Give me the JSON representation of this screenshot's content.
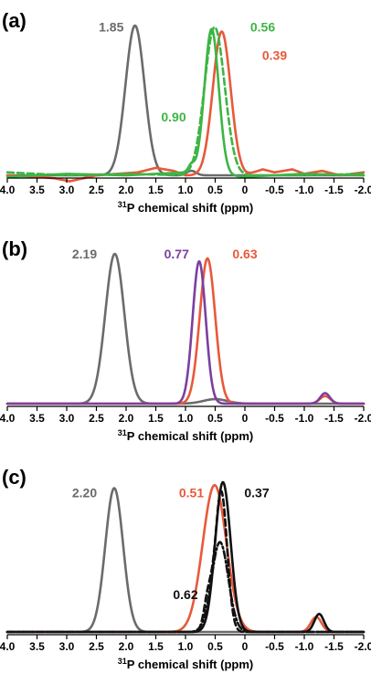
{
  "chart_data": [
    {
      "type": "line",
      "panel_label": "(a)",
      "xlabel_sup": "31",
      "xlabel": "P chemical shift (ppm)",
      "xlim": [
        4.0,
        -2.0
      ],
      "x_reversed": true,
      "x_ticks": [
        4.0,
        3.5,
        3.0,
        2.5,
        2.0,
        1.5,
        1.0,
        0.5,
        0,
        -0.5,
        -1.0,
        -1.5,
        -2.0
      ],
      "x_tick_labels": [
        "4.0",
        "3.5",
        "3.0",
        "2.5",
        "2.0",
        "1.5",
        "1.0",
        "0.5",
        "0",
        "-0.5",
        "-1.0",
        "-1.5",
        "-2.0"
      ],
      "ylim": [
        0,
        1.0
      ],
      "grid": false,
      "series": [
        {
          "color": "#6b6b6b",
          "dash": "solid",
          "peaks": [
            [
              1.85,
              1.0,
              0.16
            ],
            [
              0.9,
              0.03,
              0.08
            ]
          ],
          "baseline_points": []
        },
        {
          "color": "#e8593a",
          "dash": "solid",
          "peaks": [
            [
              0.39,
              0.96,
              0.15
            ]
          ],
          "baseline_points": [
            [
              4.0,
              0.0
            ],
            [
              3.5,
              -0.01
            ],
            [
              3.2,
              -0.02
            ],
            [
              2.95,
              -0.04
            ],
            [
              2.5,
              0.0
            ],
            [
              1.8,
              0.02
            ],
            [
              1.5,
              0.05
            ],
            [
              1.2,
              0.03
            ],
            [
              1.0,
              0.0
            ],
            [
              0.0,
              0.0
            ],
            [
              -0.3,
              0.04
            ],
            [
              -0.5,
              0.02
            ],
            [
              -0.8,
              0.04
            ],
            [
              -1.0,
              0.01
            ],
            [
              -1.3,
              0.03
            ],
            [
              -1.6,
              0.0
            ],
            [
              -2.0,
              0.02
            ]
          ]
        },
        {
          "color": "#3db545",
          "dash": "solid",
          "peaks": [
            [
              0.56,
              0.97,
              0.12
            ],
            [
              0.9,
              0.05,
              0.05
            ]
          ],
          "baseline_points": [
            [
              4.0,
              -0.01
            ],
            [
              3.0,
              0.01
            ],
            [
              2.0,
              0.0
            ],
            [
              1.0,
              0.02
            ],
            [
              0.0,
              -0.01
            ],
            [
              -1.0,
              0.01
            ],
            [
              -2.0,
              0.0
            ]
          ]
        },
        {
          "color": "#3db545",
          "dash": "dashed",
          "peaks": [
            [
              0.51,
              0.99,
              0.17
            ]
          ],
          "baseline_points": [
            [
              4.0,
              0.02
            ],
            [
              3.0,
              0.0
            ],
            [
              2.0,
              0.01
            ],
            [
              1.0,
              0.0
            ],
            [
              0.0,
              0.0
            ],
            [
              -1.0,
              0.0
            ],
            [
              -2.0,
              0.01
            ]
          ]
        }
      ],
      "annotations": [
        {
          "text": "1.85",
          "color": "#6b6b6b",
          "x": 2.25,
          "y": 0.96
        },
        {
          "text": "0.56",
          "color": "#3db545",
          "x": -0.3,
          "y": 0.96
        },
        {
          "text": "0.39",
          "color": "#e8593a",
          "x": -0.5,
          "y": 0.77
        },
        {
          "text": "0.90",
          "color": "#3db545",
          "x": 1.2,
          "y": 0.36
        }
      ]
    },
    {
      "type": "line",
      "panel_label": "(b)",
      "xlabel_sup": "31",
      "xlabel": "P chemical shift (ppm)",
      "xlim": [
        4.0,
        -2.0
      ],
      "x_reversed": true,
      "x_ticks": [
        4.0,
        3.5,
        3.0,
        2.5,
        2.0,
        1.5,
        1.0,
        0.5,
        0,
        -0.5,
        -1.0,
        -1.5,
        -2.0
      ],
      "x_tick_labels": [
        "4.0",
        "3.5",
        "3.0",
        "2.5",
        "2.0",
        "1.5",
        "1.0",
        "0.5",
        "0",
        "-0.5",
        "-1.0",
        "-1.5",
        "-2.0"
      ],
      "ylim": [
        0,
        1.0
      ],
      "grid": false,
      "series": [
        {
          "color": "#6b6b6b",
          "dash": "solid",
          "peaks": [
            [
              2.19,
              1.0,
              0.16
            ],
            [
              0.5,
              0.03,
              0.2
            ]
          ],
          "baseline_points": []
        },
        {
          "color": "#e8593a",
          "dash": "solid",
          "peaks": [
            [
              0.63,
              0.97,
              0.13
            ],
            [
              -1.35,
              0.05,
              0.09
            ]
          ],
          "baseline_points": []
        },
        {
          "color": "#7b3fa0",
          "dash": "solid",
          "peaks": [
            [
              0.77,
              0.95,
              0.11
            ],
            [
              -1.35,
              0.07,
              0.08
            ]
          ],
          "baseline_points": []
        }
      ],
      "annotations": [
        {
          "text": "2.19",
          "color": "#6b6b6b",
          "x": 2.7,
          "y": 0.97
        },
        {
          "text": "0.77",
          "color": "#7b3fa0",
          "x": 1.15,
          "y": 0.97
        },
        {
          "text": "0.63",
          "color": "#e8593a",
          "x": 0.0,
          "y": 0.97
        }
      ]
    },
    {
      "type": "line",
      "panel_label": "(c)",
      "xlabel_sup": "31",
      "xlabel": "P chemical shift (ppm)",
      "xlim": [
        4.0,
        -2.0
      ],
      "x_reversed": true,
      "x_ticks": [
        4.0,
        3.5,
        3.0,
        2.5,
        2.0,
        1.5,
        1.0,
        0.5,
        0,
        -0.5,
        -1.0,
        -1.5,
        -2.0
      ],
      "x_tick_labels": [
        "4.0",
        "3.5",
        "3.0",
        "2.5",
        "2.0",
        "1.5",
        "1.0",
        "0.5",
        "0",
        "-0.5",
        "-1.0",
        "-1.5",
        "-2.0"
      ],
      "ylim": [
        0,
        1.0
      ],
      "grid": false,
      "series": [
        {
          "color": "#6b6b6b",
          "dash": "solid",
          "peaks": [
            [
              2.2,
              0.96,
              0.15
            ]
          ],
          "baseline_points": []
        },
        {
          "color": "#e8593a",
          "dash": "solid",
          "peaks": [
            [
              0.51,
              0.98,
              0.2
            ],
            [
              -1.2,
              0.1,
              0.09
            ]
          ],
          "baseline_points": []
        },
        {
          "color": "#111111",
          "dash": "solid",
          "peaks": [
            [
              0.37,
              1.0,
              0.13
            ],
            [
              -1.25,
              0.12,
              0.08
            ]
          ],
          "baseline_points": []
        },
        {
          "color": "#111111",
          "dash": "dashed",
          "peaks": [
            [
              0.4,
              0.94,
              0.1
            ],
            [
              0.62,
              0.22,
              0.07
            ]
          ],
          "baseline_points": []
        },
        {
          "color": "#111111",
          "dash": "dashdot",
          "peaks": [
            [
              0.42,
              0.6,
              0.14
            ]
          ],
          "baseline_points": []
        }
      ],
      "annotations": [
        {
          "text": "2.20",
          "color": "#6b6b6b",
          "x": 2.7,
          "y": 0.9
        },
        {
          "text": "0.51",
          "color": "#e8593a",
          "x": 0.9,
          "y": 0.9
        },
        {
          "text": "0.37",
          "color": "#111111",
          "x": -0.2,
          "y": 0.9
        },
        {
          "text": "0.62",
          "color": "#111111",
          "x": 1.0,
          "y": 0.22
        }
      ]
    }
  ]
}
